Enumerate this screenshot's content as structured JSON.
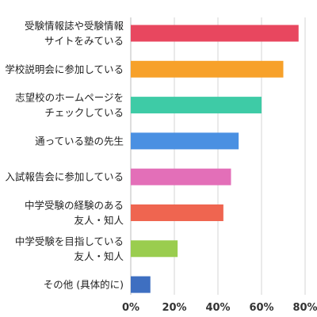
{
  "chart_data": {
    "type": "bar",
    "orientation": "horizontal",
    "title": "",
    "xlabel": "",
    "ylabel": "",
    "xlim": [
      0,
      80
    ],
    "x_ticks": [
      0,
      20,
      40,
      60,
      80
    ],
    "x_tick_labels": [
      "0%",
      "20%",
      "40%",
      "60%",
      "80%"
    ],
    "grid": true,
    "legend": "none",
    "categories": [
      [
        "受験情報誌や受験情報",
        "サイトをみている"
      ],
      [
        "学校説明会に参加している"
      ],
      [
        "志望校のホームページを",
        "チェックしている"
      ],
      [
        "通っている塾の先生"
      ],
      [
        "入試報告会に参加している"
      ],
      [
        "中学受験の経験のある",
        "友人・知人"
      ],
      [
        "中学受験を目指している",
        "友人・知人"
      ],
      [
        "その他 (具体的に)"
      ]
    ],
    "values": [
      77,
      70,
      60,
      49.5,
      46,
      42.5,
      21.5,
      9
    ],
    "colors": [
      "#e8475f",
      "#f7a12a",
      "#3ecba6",
      "#4a90e2",
      "#e36fb8",
      "#ef6550",
      "#9acd4f",
      "#3e6fc1"
    ]
  }
}
